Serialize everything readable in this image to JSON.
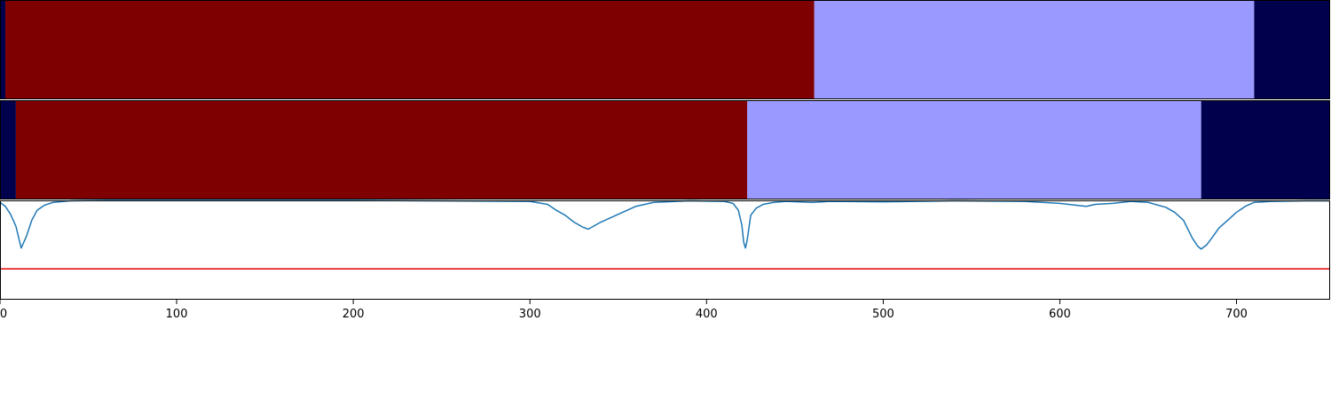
{
  "chart_data": [
    {
      "type": "heatmap",
      "segments": [
        {
          "start": 0,
          "end": 3,
          "color": "#00004c"
        },
        {
          "start": 3,
          "end": 461,
          "color": "#7f0000"
        },
        {
          "start": 461,
          "end": 710,
          "color": "#9999ff"
        },
        {
          "start": 710,
          "end": 753,
          "color": "#00004c"
        }
      ],
      "xlim": [
        0,
        753
      ]
    },
    {
      "type": "heatmap",
      "segments": [
        {
          "start": 0,
          "end": 9,
          "color": "#00004c"
        },
        {
          "start": 9,
          "end": 423,
          "color": "#7f0000"
        },
        {
          "start": 423,
          "end": 680,
          "color": "#9999ff"
        },
        {
          "start": 680,
          "end": 753,
          "color": "#00004c"
        }
      ],
      "xlim": [
        0,
        753
      ]
    },
    {
      "type": "line",
      "xlim": [
        0,
        753
      ],
      "ylim": [
        0,
        1
      ],
      "xticks": [
        "0",
        "100",
        "200",
        "300",
        "400",
        "500",
        "600",
        "700"
      ],
      "xtick_values": [
        0,
        100,
        200,
        300,
        400,
        500,
        600,
        700
      ],
      "threshold": {
        "value": 0.31,
        "color": "#e00000"
      },
      "series": [
        {
          "color": "#1f77b4",
          "x": [
            0,
            3,
            6,
            9,
            12,
            15,
            18,
            21,
            25,
            30,
            40,
            60,
            100,
            200,
            300,
            310,
            315,
            320,
            325,
            330,
            333,
            336,
            340,
            345,
            350,
            355,
            360,
            370,
            390,
            410,
            415,
            418,
            420,
            421,
            422,
            423,
            425,
            428,
            432,
            438,
            445,
            460,
            470,
            500,
            540,
            580,
            600,
            610,
            615,
            620,
            630,
            640,
            650,
            660,
            665,
            670,
            675,
            678,
            680,
            683,
            686,
            690,
            695,
            700,
            705,
            710,
            720,
            740,
            753
          ],
          "y": [
            0.98,
            0.94,
            0.86,
            0.74,
            0.52,
            0.64,
            0.8,
            0.9,
            0.95,
            0.98,
            0.995,
            1.0,
            1.0,
            1.0,
            0.99,
            0.96,
            0.9,
            0.85,
            0.78,
            0.73,
            0.71,
            0.74,
            0.78,
            0.82,
            0.86,
            0.9,
            0.94,
            0.98,
            0.995,
            0.99,
            0.97,
            0.9,
            0.75,
            0.58,
            0.52,
            0.6,
            0.85,
            0.92,
            0.96,
            0.98,
            0.99,
            0.98,
            0.99,
            0.985,
            0.995,
            0.99,
            0.97,
            0.95,
            0.94,
            0.96,
            0.97,
            0.99,
            0.98,
            0.93,
            0.88,
            0.8,
            0.62,
            0.54,
            0.51,
            0.55,
            0.62,
            0.72,
            0.8,
            0.88,
            0.94,
            0.98,
            0.99,
            0.995,
            0.995
          ]
        }
      ]
    }
  ]
}
